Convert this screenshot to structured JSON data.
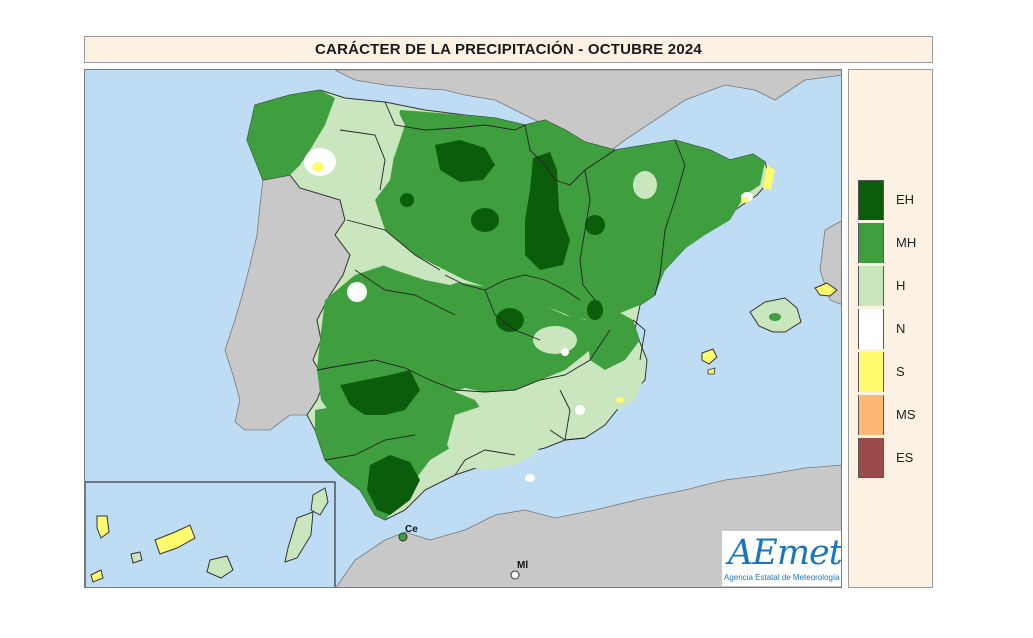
{
  "title": "CARÁCTER DE LA PRECIPITACIÓN - OCTUBRE 2024",
  "legend": {
    "items": [
      {
        "code": "EH",
        "color": "#0b5c0b"
      },
      {
        "code": "MH",
        "color": "#3f9f3f"
      },
      {
        "code": "H",
        "color": "#c9e6bf"
      },
      {
        "code": "N",
        "color": "#ffffff"
      },
      {
        "code": "S",
        "color": "#fffa6e"
      },
      {
        "code": "MS",
        "color": "#fdb874"
      },
      {
        "code": "ES",
        "color": "#9c4b4b"
      }
    ]
  },
  "places": {
    "ceuta": "Ce",
    "melilla": "Ml"
  },
  "logo": {
    "word": "AEmet",
    "subtitle": "Agencia Estatal de Meteorología"
  },
  "colors": {
    "sea": "#bfdcf5",
    "land_other": "#c8c8c8",
    "eh": "#0b5c0b",
    "mh": "#3f9f3f",
    "h": "#c9e6bf",
    "n": "#ffffff",
    "s": "#fffa6e"
  }
}
